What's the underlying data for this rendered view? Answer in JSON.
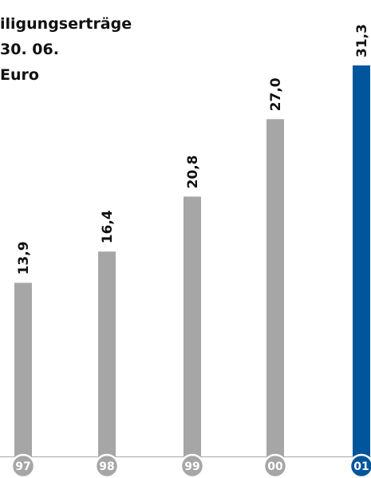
{
  "chart_data": {
    "type": "bar",
    "title_lines": [
      "iligungserträge",
      "30. 06.",
      "Euro"
    ],
    "categories": [
      "97",
      "98",
      "99",
      "00",
      "01"
    ],
    "values": [
      13.9,
      16.4,
      20.8,
      27.0,
      31.3
    ],
    "value_labels": [
      "13,9",
      "16,4",
      "20,8",
      "27,0",
      "31,3"
    ],
    "ylim": [
      0,
      31.3
    ],
    "grid": false,
    "colors": {
      "default_bar": "#a6a6a6",
      "highlight_bar": "#00559b",
      "default_badge": "#a6a6a6",
      "highlight_badge": "#00559b",
      "baseline": "#a6a6a6"
    },
    "highlight_index": 4
  }
}
